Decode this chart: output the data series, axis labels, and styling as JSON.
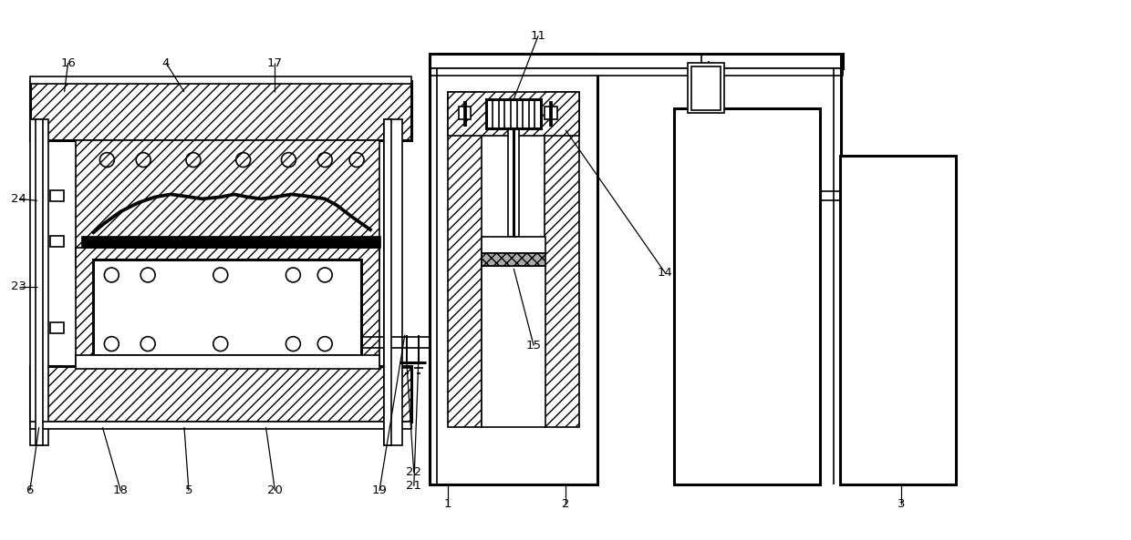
{
  "bg": "#ffffff",
  "lc": "#000000",
  "lw": 1.2,
  "lw_thick": 2.2,
  "fs": 9.5,
  "figsize": [
    12.4,
    5.93
  ],
  "dpi": 100,
  "hatch_density": "///",
  "gray": "#888888"
}
